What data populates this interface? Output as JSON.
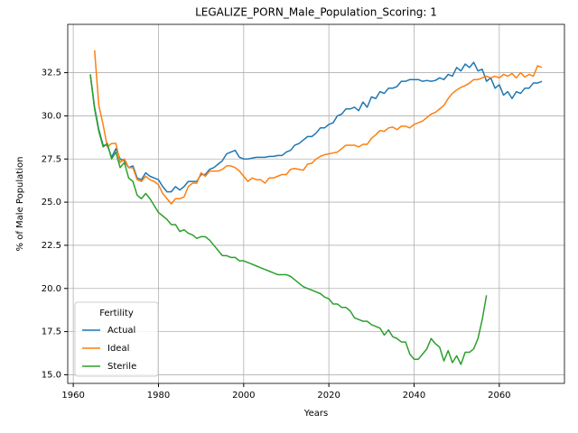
{
  "chart_data": {
    "type": "line",
    "title": "LEGALIZE_PORN_Male_Population_Scoring: 1",
    "xlabel": "Years",
    "ylabel": "% of Male Population",
    "legend_title": "Fertility",
    "legend": "lower left",
    "grid": true,
    "xlim": [
      1958.7,
      2075.3
    ],
    "ylim": [
      14.5,
      35.3
    ],
    "xticks": [
      1960,
      1980,
      2000,
      2020,
      2040,
      2060
    ],
    "yticks": [
      {
        "value": 15,
        "label": "15.0"
      },
      17.5,
      {
        "value": 20,
        "label": "20.0"
      },
      22.5,
      {
        "value": 25,
        "label": "25.0"
      },
      27.5,
      {
        "value": 30,
        "label": "30.0"
      },
      32.5
    ],
    "x": [
      1964,
      1965,
      1966,
      1967,
      1968,
      1969,
      1970,
      1971,
      1972,
      1973,
      1974,
      1975,
      1976,
      1977,
      1978,
      1979,
      1980,
      1981,
      1982,
      1983,
      1984,
      1985,
      1986,
      1987,
      1988,
      1989,
      1990,
      1991,
      1992,
      1993,
      1994,
      1995,
      1996,
      1997,
      1998,
      1999,
      2000,
      2001,
      2002,
      2003,
      2004,
      2005,
      2006,
      2007,
      2008,
      2009,
      2010,
      2011,
      2012,
      2013,
      2014,
      2015,
      2016,
      2017,
      2018,
      2019,
      2020,
      2021,
      2022,
      2023,
      2024,
      2025,
      2026,
      2027,
      2028,
      2029,
      2030,
      2031,
      2032,
      2033,
      2034,
      2035,
      2036,
      2037,
      2038,
      2039,
      2040,
      2041,
      2042,
      2043,
      2044,
      2045,
      2046,
      2047,
      2048,
      2049,
      2050,
      2051,
      2052,
      2053,
      2054,
      2055,
      2056,
      2057,
      2058,
      2059,
      2060,
      2061,
      2062,
      2063,
      2064,
      2065,
      2066,
      2067,
      2068,
      2069,
      2070
    ],
    "series": [
      {
        "name": "Actual",
        "color": "#1f77b4",
        "values": [
          32.4,
          30.5,
          29.2,
          28.3,
          28.3,
          27.6,
          28.1,
          27.5,
          27.4,
          27.0,
          27.1,
          26.4,
          26.3,
          26.7,
          26.5,
          26.4,
          26.3,
          25.9,
          25.6,
          25.6,
          25.9,
          25.7,
          25.9,
          26.2,
          26.2,
          26.2,
          26.6,
          26.6,
          26.9,
          27.0,
          27.2,
          27.4,
          27.8,
          27.9,
          28.0,
          27.6,
          27.5,
          27.5,
          27.55,
          27.6,
          27.6,
          27.6,
          27.65,
          27.65,
          27.7,
          27.7,
          27.9,
          28.0,
          28.3,
          28.4,
          28.6,
          28.8,
          28.8,
          29.0,
          29.3,
          29.3,
          29.5,
          29.6,
          30.0,
          30.1,
          30.4,
          30.4,
          30.5,
          30.3,
          30.8,
          30.5,
          31.1,
          31.0,
          31.4,
          31.3,
          31.6,
          31.6,
          31.7,
          32.0,
          32.0,
          32.1,
          32.1,
          32.1,
          32.0,
          32.05,
          32.0,
          32.05,
          32.2,
          32.1,
          32.4,
          32.3,
          32.8,
          32.6,
          33.0,
          32.8,
          33.1,
          32.6,
          32.7,
          32.0,
          32.2,
          31.6,
          31.8,
          31.2,
          31.4,
          31.0,
          31.4,
          31.3,
          31.6,
          31.6,
          31.9,
          31.9,
          32.0
        ]
      },
      {
        "name": "Ideal",
        "color": "#ff7f0e",
        "values": [
          null,
          33.8,
          30.6,
          29.5,
          28.2,
          28.4,
          28.4,
          27.3,
          27.5,
          27.0,
          27.0,
          26.3,
          26.2,
          26.5,
          26.3,
          26.2,
          26.0,
          25.5,
          25.2,
          24.9,
          25.2,
          25.2,
          25.3,
          25.9,
          26.1,
          26.1,
          26.7,
          26.5,
          26.8,
          26.8,
          26.8,
          26.9,
          27.1,
          27.1,
          27.0,
          26.8,
          26.5,
          26.2,
          26.4,
          26.3,
          26.3,
          26.1,
          26.4,
          26.4,
          26.5,
          26.6,
          26.6,
          26.9,
          26.95,
          26.9,
          26.85,
          27.2,
          27.25,
          27.5,
          27.65,
          27.75,
          27.8,
          27.85,
          27.9,
          28.1,
          28.3,
          28.3,
          28.3,
          28.2,
          28.35,
          28.35,
          28.7,
          28.9,
          29.15,
          29.1,
          29.3,
          29.35,
          29.2,
          29.4,
          29.4,
          29.3,
          29.5,
          29.6,
          29.7,
          29.9,
          30.1,
          30.2,
          30.4,
          30.6,
          31.0,
          31.3,
          31.5,
          31.65,
          31.75,
          31.9,
          32.1,
          32.1,
          32.2,
          32.3,
          32.2,
          32.3,
          32.2,
          32.4,
          32.3,
          32.45,
          32.2,
          32.5,
          32.25,
          32.4,
          32.3,
          32.9,
          32.8
        ]
      },
      {
        "name": "Sterile",
        "color": "#2ca02c",
        "values": [
          32.4,
          30.4,
          29.1,
          28.2,
          28.4,
          27.5,
          27.9,
          27.0,
          27.3,
          26.4,
          26.2,
          25.4,
          25.2,
          25.5,
          25.2,
          24.8,
          24.4,
          24.2,
          24.0,
          23.7,
          23.7,
          23.3,
          23.4,
          23.2,
          23.1,
          22.9,
          23.0,
          23.0,
          22.8,
          22.5,
          22.2,
          21.9,
          21.9,
          21.8,
          21.8,
          21.6,
          21.6,
          21.5,
          21.4,
          21.3,
          21.2,
          21.1,
          21.0,
          20.9,
          20.8,
          20.8,
          20.8,
          20.7,
          20.5,
          20.3,
          20.1,
          20.0,
          19.9,
          19.8,
          19.7,
          19.5,
          19.4,
          19.1,
          19.1,
          18.9,
          18.9,
          18.7,
          18.3,
          18.2,
          18.1,
          18.1,
          17.9,
          17.8,
          17.7,
          17.3,
          17.6,
          17.2,
          17.1,
          16.9,
          16.9,
          16.2,
          15.9,
          15.9,
          16.2,
          16.5,
          17.1,
          16.8,
          16.6,
          15.8,
          16.4,
          15.7,
          16.1,
          15.6,
          16.3,
          16.3,
          16.5,
          17.1,
          18.2,
          19.6,
          null,
          null,
          null,
          null,
          null,
          null,
          null,
          null,
          null,
          null,
          null,
          null,
          null
        ]
      }
    ]
  }
}
